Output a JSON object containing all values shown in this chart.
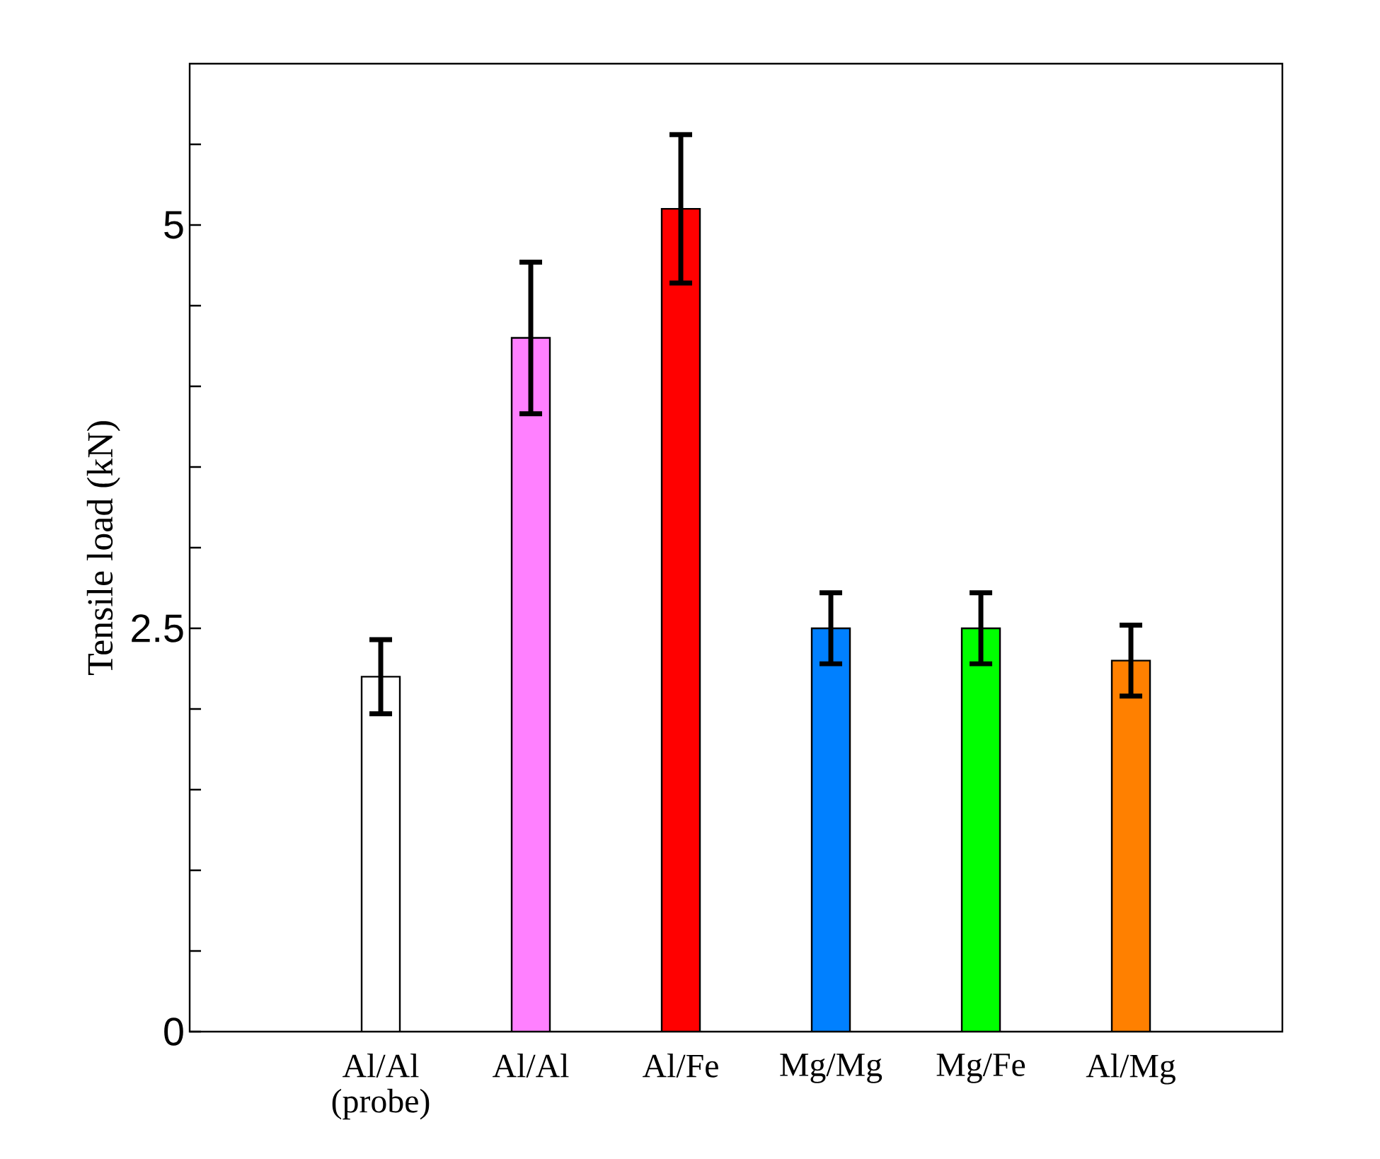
{
  "chart_data": {
    "type": "bar",
    "ylabel": "Tensile load (kN)",
    "categories": [
      "Al/Al (probe)",
      "Al/Al",
      "Al/Fe",
      "Mg/Mg",
      "Mg/Fe",
      "Al/Mg"
    ],
    "values": [
      2.2,
      4.3,
      5.1,
      2.5,
      2.5,
      2.3
    ],
    "errors": [
      0.23,
      0.47,
      0.46,
      0.22,
      0.22,
      0.22
    ],
    "colors": [
      "#ffffff",
      "#ff80ff",
      "#ff0000",
      "#0080ff",
      "#00ff00",
      "#ff8000"
    ],
    "ylim": [
      0,
      6
    ],
    "yticks": [
      0,
      {
        "value": 0.5,
        "label": null
      },
      {
        "value": 1,
        "label": null
      },
      {
        "value": 1.5,
        "label": null
      },
      {
        "value": 2,
        "label": null
      },
      2.5,
      {
        "value": 3,
        "label": null
      },
      {
        "value": 3.5,
        "label": null
      },
      {
        "value": 4,
        "label": null
      },
      {
        "value": 4.5,
        "label": null
      },
      5,
      {
        "value": 5.5,
        "label": null
      }
    ],
    "line_style": "solid"
  }
}
